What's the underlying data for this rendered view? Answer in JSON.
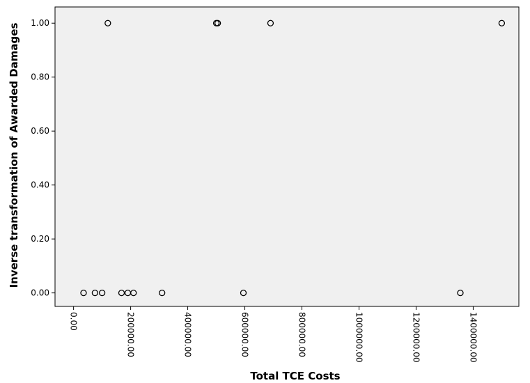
{
  "chart_data": {
    "type": "scatter",
    "title": "",
    "xlabel": "Total TCE Costs",
    "ylabel": "Inverse transformation of Awarded Damages",
    "xlim": [
      -65000,
      1560000
    ],
    "ylim": [
      -0.05,
      1.06
    ],
    "x_ticks": [
      0,
      200000,
      400000,
      600000,
      800000,
      1000000,
      1200000,
      1400000
    ],
    "x_tick_labels": [
      "0.00",
      "200000.00",
      "400000.00",
      "600000.00",
      "800000.00",
      "1000000.00",
      "1200000.00",
      "1400000.00"
    ],
    "y_ticks": [
      0,
      0.2,
      0.4,
      0.6,
      0.8,
      1.0
    ],
    "y_tick_labels": [
      "0.00",
      "0.20",
      "0.40",
      "0.60",
      "0.80",
      "1.00"
    ],
    "grid": false,
    "legend": "none",
    "colors": {
      "plot_bg": "#f0f0f0",
      "marker": "#000000"
    },
    "points": [
      {
        "x": 120000,
        "y": 1
      },
      {
        "x": 500000,
        "y": 1
      },
      {
        "x": 505000,
        "y": 1
      },
      {
        "x": 690000,
        "y": 1
      },
      {
        "x": 1500000,
        "y": 1
      },
      {
        "x": 35000,
        "y": 0
      },
      {
        "x": 75000,
        "y": 0
      },
      {
        "x": 100000,
        "y": 0
      },
      {
        "x": 168000,
        "y": 0
      },
      {
        "x": 190000,
        "y": 0
      },
      {
        "x": 210000,
        "y": 0
      },
      {
        "x": 310000,
        "y": 0
      },
      {
        "x": 595000,
        "y": 0
      },
      {
        "x": 1355000,
        "y": 0
      }
    ]
  }
}
